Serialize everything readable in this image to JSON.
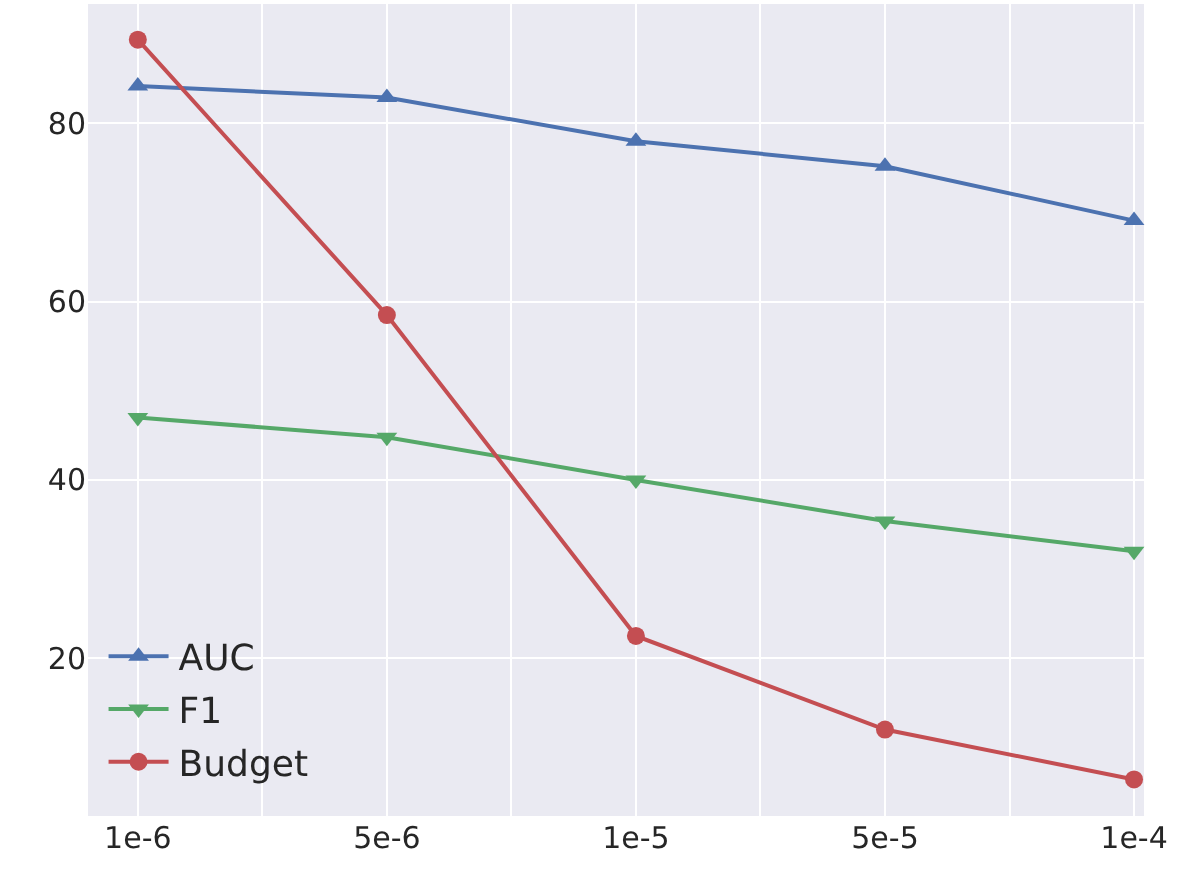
{
  "chart_data": {
    "type": "line",
    "categories": [
      "1e-6",
      "5e-6",
      "1e-5",
      "5e-5",
      "1e-4"
    ],
    "series": [
      {
        "name": "AUC",
        "color": "#4c72b0",
        "marker": "triangle-up",
        "values": [
          84.2,
          82.9,
          78.0,
          75.2,
          69.1
        ]
      },
      {
        "name": "F1",
        "color": "#55a868",
        "marker": "triangle-down",
        "values": [
          47.0,
          44.8,
          40.0,
          35.4,
          32.0
        ]
      },
      {
        "name": "Budget",
        "color": "#c44e52",
        "marker": "circle",
        "values": [
          89.4,
          58.5,
          22.5,
          12.0,
          6.4
        ]
      }
    ],
    "ylim": [
      2.3,
      93.4
    ],
    "yticks": [
      20,
      40,
      60,
      80
    ],
    "grid": true,
    "legend": "bottom left"
  }
}
